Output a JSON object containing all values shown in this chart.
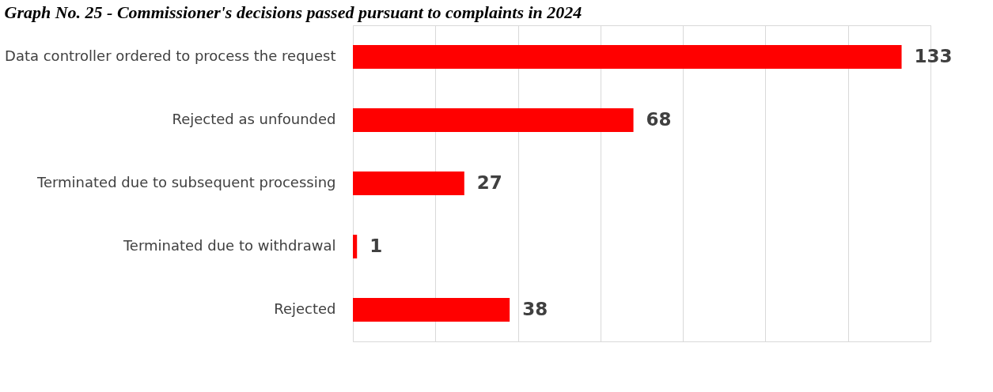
{
  "chart_data": {
    "type": "bar",
    "orientation": "horizontal",
    "title": "Graph No. 25 - Commissioner's decisions passed pursuant to complaints in 2024",
    "categories": [
      "Data controller ordered to process the request",
      "Rejected as unfounded",
      "Terminated due to subsequent processing",
      "Terminated due to withdrawal",
      "Rejected"
    ],
    "values": [
      133,
      68,
      27,
      1,
      38
    ],
    "color": "#ff0000",
    "xlim": [
      0,
      140
    ],
    "xticks": [
      {
        "value": 0,
        "label": null
      },
      {
        "value": 20,
        "label": null
      },
      {
        "value": 40,
        "label": null
      },
      {
        "value": 60,
        "label": null
      },
      {
        "value": 80,
        "label": null
      },
      {
        "value": 100,
        "label": null
      },
      {
        "value": 120,
        "label": null
      },
      {
        "value": 140,
        "label": null
      }
    ],
    "grid": "x",
    "tick_labels": "y",
    "data_labels": true
  }
}
